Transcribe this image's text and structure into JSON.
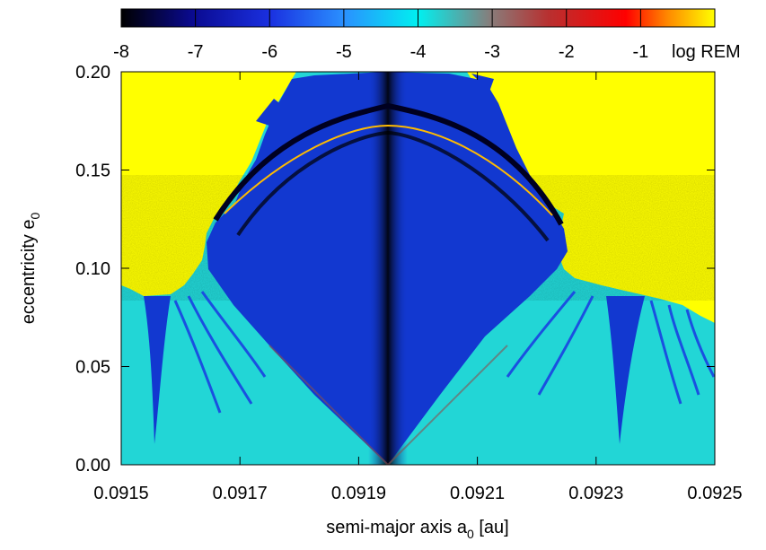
{
  "chart_data": {
    "type": "heatmap",
    "title": "",
    "xlabel_main": "semi-major axis a",
    "xlabel_sub": "0",
    "xlabel_unit": " [au]",
    "ylabel_main": "eccentricity e",
    "ylabel_sub": "0",
    "xlim": [
      0.0915,
      0.0925
    ],
    "ylim": [
      0.0,
      0.2
    ],
    "x_ticks": [
      "0.0915",
      "0.0917",
      "0.0919",
      "0.0921",
      "0.0923",
      "0.0925"
    ],
    "y_ticks": [
      "0.00",
      "0.05",
      "0.10",
      "0.15",
      "0.20"
    ],
    "colorbar": {
      "label": "log REM",
      "range": [
        -8,
        0
      ],
      "ticks": [
        "-8",
        "-7",
        "-6",
        "-5",
        "-4",
        "-3",
        "-2",
        "-1"
      ],
      "colors": [
        "#000000",
        "#1010c8",
        "#2255ff",
        "#00e8ee",
        "#8a7a78",
        "#cc1818",
        "#ff0000",
        "#ffff00"
      ]
    },
    "regions": {
      "chaotic_color": "#ffff00",
      "regular_color": "#22d6d6",
      "resonance_color": "#1238d0",
      "core_color": "#000000"
    },
    "resonance_center_x": 0.09195,
    "chaos_boundary_y": 0.09
  }
}
